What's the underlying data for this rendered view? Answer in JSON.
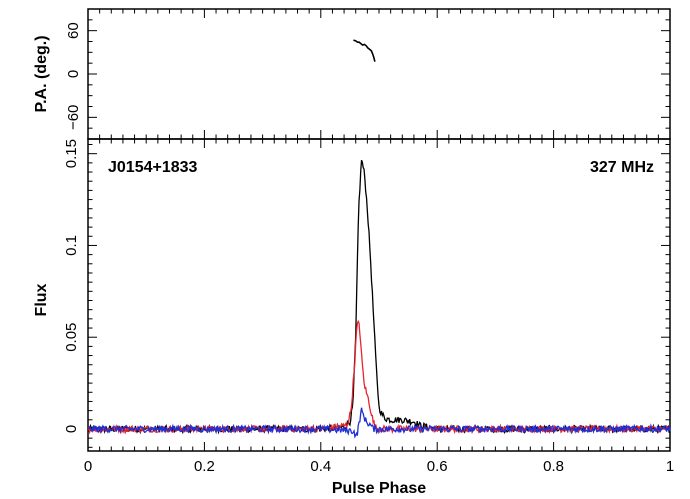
{
  "chart_data": [
    {
      "type": "scatter",
      "panel": "position-angle",
      "ylabel": "P.A. (deg.)",
      "xlim": [
        0,
        1
      ],
      "ylim": [
        -90,
        90
      ],
      "yticks": [
        -60,
        0,
        60
      ],
      "ytick_labels": [
        "−60",
        "0",
        "60"
      ],
      "series": [
        {
          "color": "#000000",
          "x": [
            0.456,
            0.46,
            0.463,
            0.466,
            0.469,
            0.472,
            0.475,
            0.478,
            0.481,
            0.484,
            0.487,
            0.489,
            0.491,
            0.493
          ],
          "y": [
            47,
            46,
            44,
            44,
            42,
            40,
            41,
            39,
            36,
            34,
            32,
            28,
            23,
            17
          ]
        }
      ]
    },
    {
      "type": "line",
      "panel": "profile",
      "xlabel": "Pulse Phase",
      "ylabel": "Flux",
      "xlim": [
        0,
        1
      ],
      "ylim": [
        -0.012,
        0.158
      ],
      "xticks": [
        0,
        0.2,
        0.4,
        0.6,
        0.8,
        1
      ],
      "xtick_labels": [
        "0",
        "0.2",
        "0.4",
        "0.6",
        "0.8",
        "1"
      ],
      "yticks": [
        0,
        0.05,
        0.1,
        0.15
      ],
      "ytick_labels": [
        "0",
        "0.05",
        "0.1",
        "0.15"
      ],
      "annotations": {
        "source": "J0154+1833",
        "frequency": "327 MHz"
      },
      "noise_level": 0.0018,
      "series": [
        {
          "color": "#000000",
          "x": [
            0.0,
            0.3,
            0.4,
            0.44,
            0.45,
            0.455,
            0.46,
            0.465,
            0.47,
            0.475,
            0.48,
            0.485,
            0.49,
            0.495,
            0.5,
            0.505,
            0.51,
            0.52,
            0.54,
            0.56,
            0.57,
            0.6,
            0.8,
            1.0
          ],
          "y": [
            0.0,
            0.0,
            0.0,
            0.001,
            0.004,
            0.012,
            0.05,
            0.12,
            0.147,
            0.139,
            0.12,
            0.095,
            0.065,
            0.035,
            0.012,
            0.008,
            0.006,
            0.005,
            0.005,
            0.004,
            0.002,
            0.0,
            0.0,
            0.0
          ]
        },
        {
          "color": "#e8242c",
          "x": [
            0.0,
            0.3,
            0.4,
            0.445,
            0.452,
            0.458,
            0.462,
            0.466,
            0.47,
            0.474,
            0.478,
            0.482,
            0.486,
            0.49,
            0.494,
            0.5,
            0.51,
            0.6,
            0.8,
            1.0
          ],
          "y": [
            0.0,
            0.0,
            0.0,
            0.002,
            0.01,
            0.035,
            0.056,
            0.058,
            0.04,
            0.026,
            0.02,
            0.016,
            0.01,
            0.004,
            0.001,
            0.0,
            0.0,
            0.0,
            0.0,
            0.0
          ]
        },
        {
          "color": "#1f2fd8",
          "x": [
            0.0,
            0.3,
            0.4,
            0.455,
            0.462,
            0.466,
            0.47,
            0.474,
            0.478,
            0.482,
            0.486,
            0.49,
            0.5,
            0.6,
            0.8,
            1.0
          ],
          "y": [
            0.0,
            0.0,
            0.0,
            -0.001,
            -0.004,
            0.004,
            0.01,
            0.007,
            0.004,
            0.003,
            0.002,
            0.0,
            0.0,
            0.0,
            0.0,
            0.0
          ]
        }
      ]
    }
  ]
}
